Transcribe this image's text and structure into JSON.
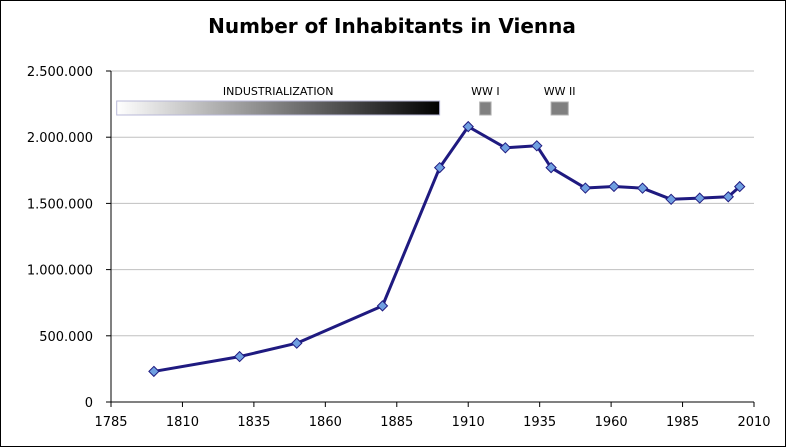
{
  "chart_data": {
    "type": "line",
    "title": "Number of Inhabitants in Vienna",
    "xlabel": "",
    "ylabel": "",
    "xlim": [
      1785,
      2010
    ],
    "ylim": [
      0,
      2500000
    ],
    "x_ticks": [
      1785,
      1810,
      1835,
      1860,
      1885,
      1910,
      1935,
      1960,
      1985,
      2010
    ],
    "y_ticks": [
      0,
      500000,
      1000000,
      1500000,
      2000000,
      2500000
    ],
    "y_tick_labels": [
      "0",
      "500.000",
      "1.000.000",
      "1.500.000",
      "2.000.000",
      "2.500.000"
    ],
    "grid": true,
    "series": [
      {
        "x": [
          1800,
          1830,
          1850,
          1880,
          1900,
          1910,
          1923,
          1934,
          1939,
          1951,
          1961,
          1971,
          1981,
          1991,
          2001,
          2005
        ],
        "y": [
          231000,
          343000,
          444000,
          726000,
          1770000,
          2080000,
          1920000,
          1935000,
          1770000,
          1616000,
          1628000,
          1615000,
          1531000,
          1540000,
          1550000,
          1627000
        ],
        "color": "#1f1a80",
        "marker_color": "#6f9fe0"
      }
    ],
    "annotations": [
      {
        "label": "INDUSTRIALIZATION",
        "x_start": 1787,
        "x_end": 1900,
        "style": "gradient"
      },
      {
        "label": "WW I",
        "x_start": 1914,
        "x_end": 1918,
        "style": "block"
      },
      {
        "label": "WW II",
        "x_start": 1939,
        "x_end": 1945,
        "style": "block"
      }
    ]
  }
}
